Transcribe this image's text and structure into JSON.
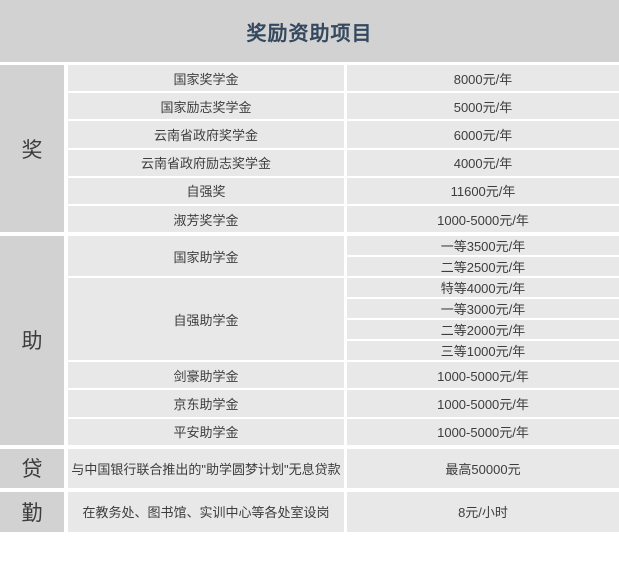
{
  "title": "奖励资助项目",
  "colors": {
    "header_bg": "#d2d2d2",
    "cell_bg": "#e8e8e8",
    "title_text": "#34485e",
    "body_text": "#3d3d3d",
    "gap": "#ffffff"
  },
  "sections": [
    {
      "category": "奖",
      "items": [
        {
          "name": "国家奖学金",
          "amounts": [
            "8000元/年"
          ]
        },
        {
          "name": "国家励志奖学金",
          "amounts": [
            "5000元/年"
          ]
        },
        {
          "name": "云南省政府奖学金",
          "amounts": [
            "6000元/年"
          ]
        },
        {
          "name": "云南省政府励志奖学金",
          "amounts": [
            "4000元/年"
          ]
        },
        {
          "name": "自强奖",
          "amounts": [
            "11600元/年"
          ]
        },
        {
          "name": "淑芳奖学金",
          "amounts": [
            "1000-5000元/年"
          ]
        }
      ]
    },
    {
      "category": "助",
      "items": [
        {
          "name": "国家助学金",
          "amounts": [
            "一等3500元/年",
            "二等2500元/年"
          ]
        },
        {
          "name": "自强助学金",
          "amounts": [
            "特等4000元/年",
            "一等3000元/年",
            "二等2000元/年",
            "三等1000元/年"
          ]
        },
        {
          "name": "剑豪助学金",
          "amounts": [
            "1000-5000元/年"
          ]
        },
        {
          "name": "京东助学金",
          "amounts": [
            "1000-5000元/年"
          ]
        },
        {
          "name": "平安助学金",
          "amounts": [
            "1000-5000元/年"
          ]
        }
      ]
    },
    {
      "category": "贷",
      "items": [
        {
          "name": "与中国银行联合推出的\"助学圆梦计划\"无息贷款",
          "amounts": [
            "最高50000元"
          ]
        }
      ]
    },
    {
      "category": "勤",
      "items": [
        {
          "name": "在教务处、图书馆、实训中心等各处室设岗",
          "amounts": [
            "8元/小时"
          ]
        }
      ]
    }
  ]
}
